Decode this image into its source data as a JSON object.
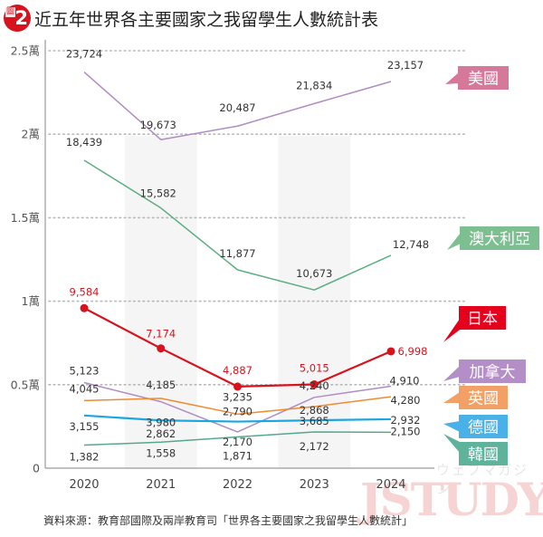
{
  "header": {
    "figure_badge_char": "圖",
    "figure_number": "2",
    "title": "近五年世界各主要國家之我留學生人數統計表"
  },
  "chart_data": {
    "type": "line",
    "title": "近五年世界各主要國家之我留學生人數統計表",
    "xlabel": "",
    "ylabel": "",
    "x": [
      "2020",
      "2021",
      "2022",
      "2023",
      "2024"
    ],
    "ylim": [
      0,
      25000
    ],
    "yticks": [
      {
        "value": 0,
        "label": "0"
      },
      {
        "value": 5000,
        "label": "0.5萬"
      },
      {
        "value": 10000,
        "label": "1萬"
      },
      {
        "value": 15000,
        "label": "1.5萬"
      },
      {
        "value": 20000,
        "label": "2萬"
      },
      {
        "value": 25000,
        "label": "2.5萬"
      }
    ],
    "grid": "horizontal-dotted",
    "legend": "right (callout tags)",
    "series": [
      {
        "key": "us",
        "name": "美國",
        "color": "#b08cc4",
        "tag_color": "#d5789a",
        "values": [
          23724,
          19673,
          20487,
          21834,
          23157
        ],
        "labels": [
          "23,724",
          "19,673",
          "20,487",
          "21,834",
          "23,157"
        ],
        "markers": false
      },
      {
        "key": "au",
        "name": "澳大利亞",
        "color": "#5bae7e",
        "tag_color": "#7dbf90",
        "values": [
          18439,
          15582,
          11877,
          10673,
          12748
        ],
        "labels": [
          "18,439",
          "15,582",
          "11,877",
          "10,673",
          "12,748"
        ],
        "markers": false
      },
      {
        "key": "jp",
        "name": "日本",
        "color": "#d7141e",
        "tag_color": "#e5001c",
        "values": [
          9584,
          7174,
          4887,
          5015,
          6998
        ],
        "labels": [
          "9,584",
          "7,174",
          "4,887",
          "5,015",
          "6,998"
        ],
        "markers": true
      },
      {
        "key": "ca",
        "name": "加拿大",
        "color": "#b08cc4",
        "tag_color": "#b48fc7",
        "values": [
          5123,
          3980,
          2170,
          4240,
          4910
        ],
        "labels": [
          "5,123",
          "3,980",
          "2,170",
          "4,240",
          "4,910"
        ],
        "markers": false
      },
      {
        "key": "uk",
        "name": "英國",
        "color": "#ef8b2f",
        "tag_color": "#f2a066",
        "values": [
          4045,
          4185,
          3235,
          3685,
          4280
        ],
        "labels": [
          "4,045",
          "4,185",
          "3,235",
          "3,685",
          "4,280"
        ],
        "markers": false
      },
      {
        "key": "de",
        "name": "德國",
        "color": "#1aa6e0",
        "tag_color": "#4ab1e8",
        "values": [
          3155,
          2862,
          2790,
          2868,
          2932
        ],
        "labels": [
          "3,155",
          "2,862",
          "2,790",
          "2,868",
          "2,932"
        ],
        "markers": false
      },
      {
        "key": "kr",
        "name": "韓國",
        "color": "#55a88e",
        "tag_color": "#5fb39a",
        "values": [
          1382,
          1558,
          1871,
          2172,
          2150
        ],
        "labels": [
          "1,382",
          "1,558",
          "1,871",
          "2,172",
          "2,150"
        ],
        "markers": false
      }
    ]
  },
  "footer": {
    "source": "資料來源：教育部國際及兩岸教育司「世界各主要國家之我留學生人數統計」"
  },
  "watermark": {
    "kana": "ウェブマガジン",
    "word": "JSTUDY"
  }
}
